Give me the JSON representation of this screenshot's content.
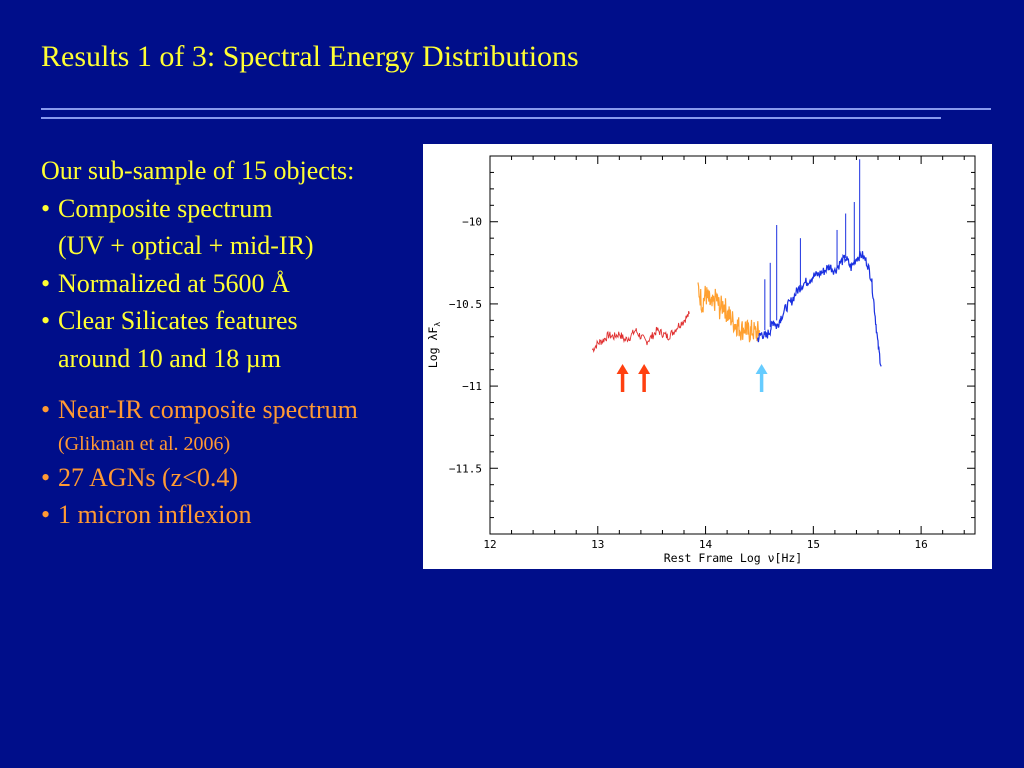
{
  "slide": {
    "title": "Results 1 of 3: Spectral Energy Distributions",
    "intro": "Our sub-sample of 15 objects:",
    "bullets_yellow": [
      {
        "text": "Composite spectrum",
        "cont": "(UV + optical + mid-IR)"
      },
      {
        "text": "Normalized at 5600 Å",
        "cont": ""
      },
      {
        "text": "Clear Silicates features",
        "cont": "around 10 and 18 µm"
      }
    ],
    "nir_bullet": "Near-IR composite spectrum",
    "nir_ref": "(Glikman et al. 2006)",
    "bullets_orange": [
      "27 AGNs (z<0.4)",
      "1 micron inflexion"
    ],
    "bullet_char": "•"
  },
  "chart_data": {
    "type": "line",
    "xlabel": "Rest Frame  Log ν[Hz]",
    "ylabel": "Log λF",
    "ylabel_sub": "λ",
    "xlim": [
      12,
      16.5
    ],
    "ylim": [
      -11.9,
      -9.6
    ],
    "xticks": [
      12,
      13,
      14,
      15,
      16
    ],
    "yticks": [
      -10,
      -10.5,
      -11,
      -11.5
    ],
    "xtick_labels": [
      "12",
      "13",
      "14",
      "15",
      "16"
    ],
    "ytick_labels": [
      "−10",
      "−10.5",
      "−11",
      "−11.5"
    ],
    "series": [
      {
        "color": "#e03030",
        "x": [
          12.95,
          13.0,
          13.05,
          13.1,
          13.15,
          13.2,
          13.25,
          13.3,
          13.35,
          13.4,
          13.45,
          13.5,
          13.55,
          13.6,
          13.65,
          13.7,
          13.75,
          13.8,
          13.85
        ],
        "y": [
          -10.78,
          -10.74,
          -10.72,
          -10.69,
          -10.7,
          -10.68,
          -10.72,
          -10.7,
          -10.66,
          -10.7,
          -10.73,
          -10.7,
          -10.66,
          -10.68,
          -10.7,
          -10.67,
          -10.63,
          -10.6,
          -10.56
        ]
      },
      {
        "color": "#ffa030",
        "x": [
          13.93,
          13.97,
          14.0,
          14.03,
          14.06,
          14.1,
          14.13,
          14.17,
          14.2,
          14.23,
          14.27,
          14.3,
          14.33,
          14.37,
          14.4,
          14.43,
          14.47,
          14.5
        ],
        "y": [
          -10.4,
          -10.5,
          -10.44,
          -10.48,
          -10.52,
          -10.46,
          -10.53,
          -10.5,
          -10.56,
          -10.58,
          -10.62,
          -10.63,
          -10.66,
          -10.64,
          -10.68,
          -10.66,
          -10.68,
          -10.66
        ]
      },
      {
        "color": "#1a30e0",
        "x": [
          14.48,
          14.52,
          14.56,
          14.6,
          14.63,
          14.66,
          14.7,
          14.75,
          14.8,
          14.85,
          14.9,
          14.95,
          15.0,
          15.05,
          15.1,
          15.15,
          15.2,
          15.25,
          15.3,
          15.35,
          15.4,
          15.45,
          15.5,
          15.54,
          15.57,
          15.6,
          15.63
        ],
        "y": [
          -10.72,
          -10.68,
          -10.7,
          -10.66,
          -10.6,
          -10.64,
          -10.58,
          -10.52,
          -10.48,
          -10.42,
          -10.38,
          -10.36,
          -10.33,
          -10.32,
          -10.3,
          -10.27,
          -10.3,
          -10.25,
          -10.22,
          -10.28,
          -10.22,
          -10.2,
          -10.25,
          -10.35,
          -10.55,
          -10.75,
          -10.88
        ]
      }
    ],
    "spikes": [
      {
        "x": 14.66,
        "y0": -10.6,
        "y1": -10.02
      },
      {
        "x": 14.55,
        "y0": -10.66,
        "y1": -10.35
      },
      {
        "x": 14.6,
        "y0": -10.64,
        "y1": -10.25
      },
      {
        "x": 14.88,
        "y0": -10.42,
        "y1": -10.1
      },
      {
        "x": 15.3,
        "y0": -10.22,
        "y1": -9.95
      },
      {
        "x": 15.38,
        "y0": -10.25,
        "y1": -9.88
      },
      {
        "x": 15.43,
        "y0": -10.22,
        "y1": -9.62
      },
      {
        "x": 15.22,
        "y0": -10.28,
        "y1": -10.05
      }
    ],
    "markers": [
      {
        "x": 13.23,
        "color": "#ff4010"
      },
      {
        "x": 13.43,
        "color": "#ff4010"
      },
      {
        "x": 14.52,
        "color": "#66ccff"
      }
    ]
  }
}
